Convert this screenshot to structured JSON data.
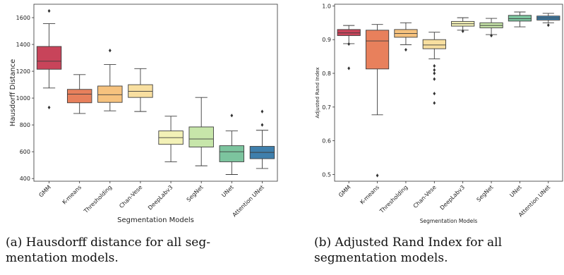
{
  "chart_data": [
    {
      "type": "box",
      "ylabel": "Hausdorff Distance",
      "xlabel": "Segmentation Models",
      "ylim": [
        380,
        1700
      ],
      "yticks": [
        400,
        600,
        800,
        1000,
        1200,
        1400,
        1600
      ],
      "grid": false,
      "categories": [
        "GMM",
        "K-means",
        "Thresholding",
        "Chan-Vese",
        "DeepLabv3",
        "SegNet",
        "UNet",
        "Attention UNet"
      ],
      "colors": [
        "#c8445a",
        "#e8805c",
        "#f6c27e",
        "#f8dfa0",
        "#f3f1b7",
        "#c7e6aa",
        "#7cc49e",
        "#3f7fac"
      ],
      "boxes": [
        {
          "min": 1075,
          "q1": 1215,
          "median": 1275,
          "q3": 1385,
          "max": 1555,
          "outliers": [
            1650,
            930
          ]
        },
        {
          "min": 885,
          "q1": 965,
          "median": 1030,
          "q3": 1065,
          "max": 1175,
          "outliers": []
        },
        {
          "min": 905,
          "q1": 968,
          "median": 1025,
          "q3": 1090,
          "max": 1250,
          "outliers": [
            1355
          ]
        },
        {
          "min": 900,
          "q1": 1005,
          "median": 1050,
          "q3": 1100,
          "max": 1220,
          "outliers": []
        },
        {
          "min": 525,
          "q1": 655,
          "median": 705,
          "q3": 755,
          "max": 865,
          "outliers": []
        },
        {
          "min": 495,
          "q1": 635,
          "median": 695,
          "q3": 785,
          "max": 1005,
          "outliers": []
        },
        {
          "min": 430,
          "q1": 525,
          "median": 600,
          "q3": 645,
          "max": 755,
          "outliers": [
            870
          ]
        },
        {
          "min": 475,
          "q1": 548,
          "median": 595,
          "q3": 640,
          "max": 760,
          "outliers": [
            900,
            800
          ]
        }
      ]
    },
    {
      "type": "box",
      "ylabel": "Adjusted Rand Index",
      "xlabel": "Segmentation Models",
      "ylim": [
        0.48,
        1.005
      ],
      "yticks": [
        0.5,
        0.6,
        0.7,
        0.8,
        0.9,
        1.0
      ],
      "grid": false,
      "categories": [
        "GMM",
        "K-means",
        "Thresholding",
        "Chan-Vese",
        "DeepLabv3",
        "SegNet",
        "UNet",
        "Attention UNet"
      ],
      "colors": [
        "#c8445a",
        "#e8805c",
        "#f6c27e",
        "#f8dfa0",
        "#f3f1b7",
        "#c7e6aa",
        "#7cc49e",
        "#3f7fac"
      ],
      "boxes": [
        {
          "min": 0.888,
          "q1": 0.912,
          "median": 0.92,
          "q3": 0.93,
          "max": 0.942,
          "outliers": [
            0.815,
            0.887
          ]
        },
        {
          "min": 0.677,
          "q1": 0.813,
          "median": 0.896,
          "q3": 0.928,
          "max": 0.945,
          "outliers": [
            0.497
          ]
        },
        {
          "min": 0.885,
          "q1": 0.907,
          "median": 0.918,
          "q3": 0.93,
          "max": 0.95,
          "outliers": [
            0.87
          ]
        },
        {
          "min": 0.843,
          "q1": 0.873,
          "median": 0.884,
          "q3": 0.9,
          "max": 0.922,
          "outliers": [
            0.822,
            0.81,
            0.8,
            0.783,
            0.74,
            0.712
          ]
        },
        {
          "min": 0.928,
          "q1": 0.94,
          "median": 0.947,
          "q3": 0.954,
          "max": 0.965,
          "outliers": [
            0.925
          ]
        },
        {
          "min": 0.915,
          "q1": 0.935,
          "median": 0.942,
          "q3": 0.95,
          "max": 0.963,
          "outliers": [
            0.912
          ]
        },
        {
          "min": 0.938,
          "q1": 0.955,
          "median": 0.962,
          "q3": 0.972,
          "max": 0.982,
          "outliers": []
        },
        {
          "min": 0.95,
          "q1": 0.958,
          "median": 0.964,
          "q3": 0.97,
          "max": 0.978,
          "outliers": [
            0.943
          ]
        }
      ]
    }
  ],
  "captions": [
    {
      "line1": "(a)  Hausdorff  distance  for  all  seg-",
      "line2": "mentation models."
    },
    {
      "line1": "(b)  Adjusted  Rand  Index  for  all",
      "line2": "segmentation models."
    }
  ]
}
